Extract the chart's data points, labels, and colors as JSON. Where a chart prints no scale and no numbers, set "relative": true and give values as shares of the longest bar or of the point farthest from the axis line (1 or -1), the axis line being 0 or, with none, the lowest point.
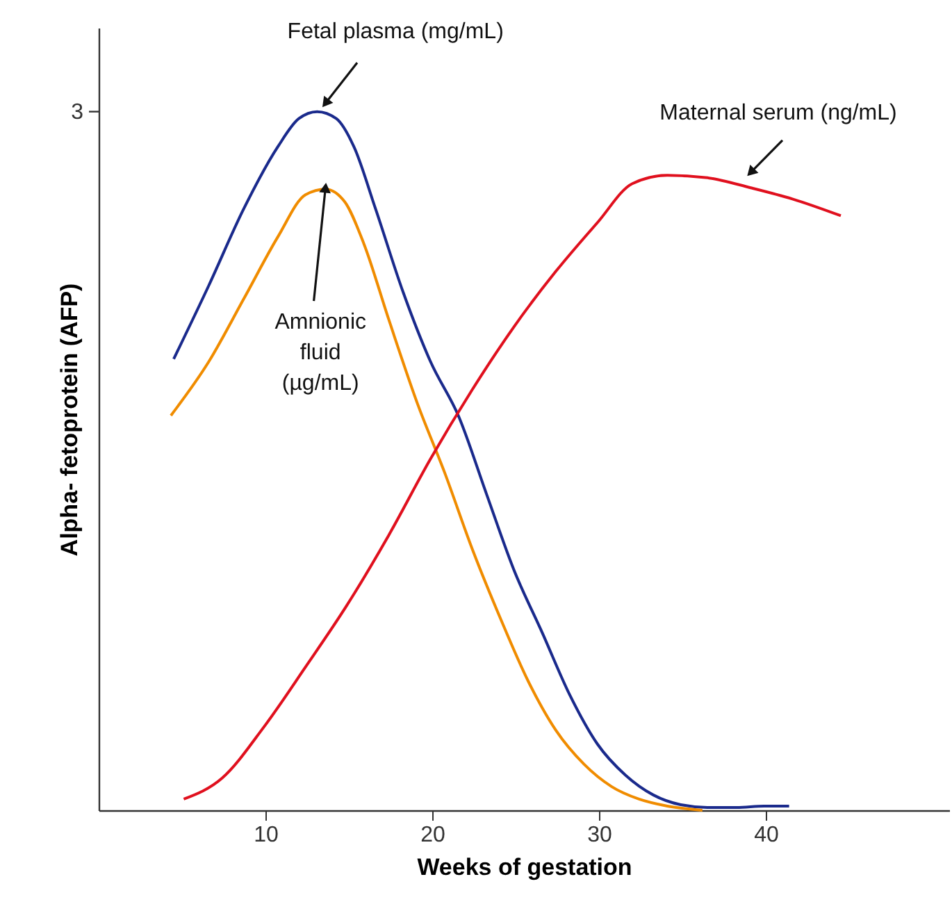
{
  "chart_data": {
    "type": "line",
    "relative": true,
    "xlabel": "Weeks of gestation",
    "ylabel": "Alpha- fetoprotein (AFP)",
    "xlim": [
      0,
      51
    ],
    "xticks": [
      10,
      20,
      30,
      40
    ],
    "annotations": [
      "3"
    ],
    "grid": false,
    "legend": false,
    "marker": "none",
    "line_style": "solid",
    "series": [
      {
        "name": "Fetal plasma (mg/mL)",
        "color": "#1a2a8c",
        "x": [
          4.5,
          6.6,
          8.7,
          10.75,
          12,
          13.1,
          14.25,
          15.3,
          16.6,
          18.25,
          19.9,
          21.6,
          23.25,
          24.9,
          26.6,
          28.25,
          29.9,
          31.6,
          33.25,
          34.9,
          36.6,
          38.25,
          39.9,
          41.4
        ],
        "values": [
          0.646,
          0.751,
          0.861,
          0.95,
          0.99,
          1,
          0.99,
          0.95,
          0.861,
          0.742,
          0.642,
          0.563,
          0.453,
          0.344,
          0.254,
          0.165,
          0.095,
          0.05,
          0.022,
          0.008,
          0.004,
          0.004,
          0.006,
          0.006
        ]
      },
      {
        "name": "Amnionic fluid (µg/mL)",
        "color": "#f08c00",
        "x": [
          4.33,
          6.6,
          8.7,
          10.75,
          12.4,
          13.6,
          14.75,
          15.9,
          17.4,
          19.1,
          20.75,
          22.4,
          24.1,
          25.75,
          27.4,
          29.1,
          30.75,
          32.4,
          34.1,
          36.2
        ],
        "values": [
          0.565,
          0.642,
          0.732,
          0.821,
          0.881,
          0.889,
          0.871,
          0.811,
          0.702,
          0.583,
          0.483,
          0.374,
          0.274,
          0.185,
          0.115,
          0.066,
          0.034,
          0.016,
          0.006,
          0
        ]
      },
      {
        "name": "Maternal serum (ng/mL)",
        "color": "#e0101e",
        "x": [
          5.1,
          7.4,
          9.9,
          12.4,
          14.9,
          17.4,
          19.9,
          22.4,
          24.9,
          27.4,
          29.9,
          32,
          34.1,
          36.6,
          39.1,
          41.6,
          44.5
        ],
        "values": [
          0.016,
          0.046,
          0.119,
          0.205,
          0.294,
          0.394,
          0.503,
          0.602,
          0.692,
          0.771,
          0.841,
          0.897,
          0.909,
          0.905,
          0.891,
          0.875,
          0.851
        ]
      }
    ]
  }
}
